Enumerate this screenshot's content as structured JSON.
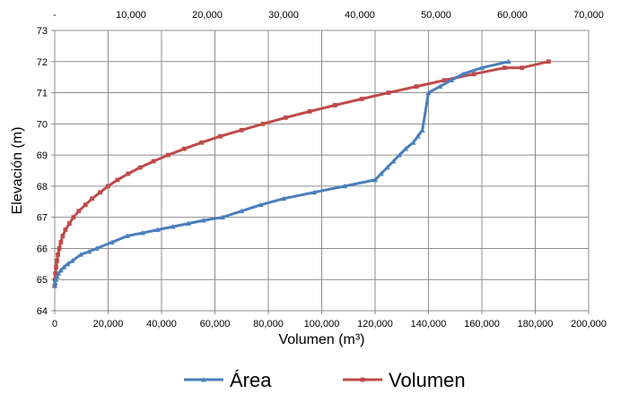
{
  "chart_data": {
    "type": "line",
    "title": "",
    "xlabel": "Volumen (m³)",
    "ylabel": "Elevación (m)",
    "xlim": [
      0,
      200000
    ],
    "x_ticks": [
      0,
      20000,
      40000,
      60000,
      80000,
      100000,
      120000,
      140000,
      160000,
      180000,
      200000
    ],
    "x_tick_labels": [
      "0",
      "20,000",
      "40,000",
      "60,000",
      "80,000",
      "100,000",
      "120,000",
      "140,000",
      "160,000",
      "180,000",
      "200,000"
    ],
    "x2lim": [
      0,
      70000
    ],
    "x2_ticks": [
      0,
      10000,
      20000,
      30000,
      40000,
      50000,
      60000,
      70000
    ],
    "x2_tick_labels": [
      "-",
      "10,000",
      "20,000",
      "30,000",
      "40,000",
      "50,000",
      "60,000",
      "70,000"
    ],
    "ylim": [
      64,
      73
    ],
    "y_ticks": [
      64,
      65,
      66,
      67,
      68,
      69,
      70,
      71,
      72,
      73
    ],
    "grid": true,
    "legend_position": "bottom",
    "series": [
      {
        "name": "Área",
        "axis": "x2",
        "color": "#4a7ebb",
        "marker": "triangle",
        "x": [
          0,
          60,
          150,
          300,
          500,
          800,
          1200,
          1700,
          2300,
          3400,
          4500,
          5500,
          7500,
          9500,
          11500,
          13500,
          15500,
          17500,
          19500,
          22000,
          24500,
          27000,
          30000,
          34000,
          38000,
          42000,
          42800,
          43600,
          44400,
          45200,
          46000,
          47000,
          47600,
          48200,
          49000,
          50500,
          52000,
          53500,
          56000,
          59500
        ],
        "y": [
          64.8,
          64.9,
          65.0,
          65.1,
          65.2,
          65.3,
          65.4,
          65.5,
          65.6,
          65.8,
          65.9,
          66.0,
          66.2,
          66.4,
          66.5,
          66.6,
          66.7,
          66.8,
          66.9,
          67.0,
          67.2,
          67.4,
          67.6,
          67.8,
          68.0,
          68.2,
          68.4,
          68.6,
          68.8,
          69.0,
          69.2,
          69.4,
          69.6,
          69.8,
          71.0,
          71.2,
          71.4,
          71.6,
          71.8,
          72.0
        ]
      },
      {
        "name": "Volumen",
        "axis": "x",
        "color": "#be4b48",
        "marker": "square",
        "x": [
          0,
          100,
          250,
          500,
          800,
          1200,
          1700,
          2300,
          3000,
          4000,
          5500,
          7000,
          9000,
          11500,
          14000,
          17000,
          20000,
          23500,
          27500,
          32000,
          37000,
          42500,
          48500,
          55000,
          62000,
          70000,
          78000,
          86500,
          95500,
          105000,
          115000,
          125000,
          135500,
          146000,
          157000,
          168500,
          175000,
          185000
        ],
        "y": [
          64.8,
          65.0,
          65.2,
          65.4,
          65.6,
          65.8,
          66.0,
          66.2,
          66.4,
          66.6,
          66.8,
          67.0,
          67.2,
          67.4,
          67.6,
          67.8,
          68.0,
          68.2,
          68.4,
          68.6,
          68.8,
          69.0,
          69.2,
          69.4,
          69.6,
          69.8,
          70.0,
          70.2,
          70.4,
          70.6,
          70.8,
          71.0,
          71.2,
          71.4,
          71.6,
          71.8,
          71.8,
          72.0
        ]
      }
    ]
  }
}
